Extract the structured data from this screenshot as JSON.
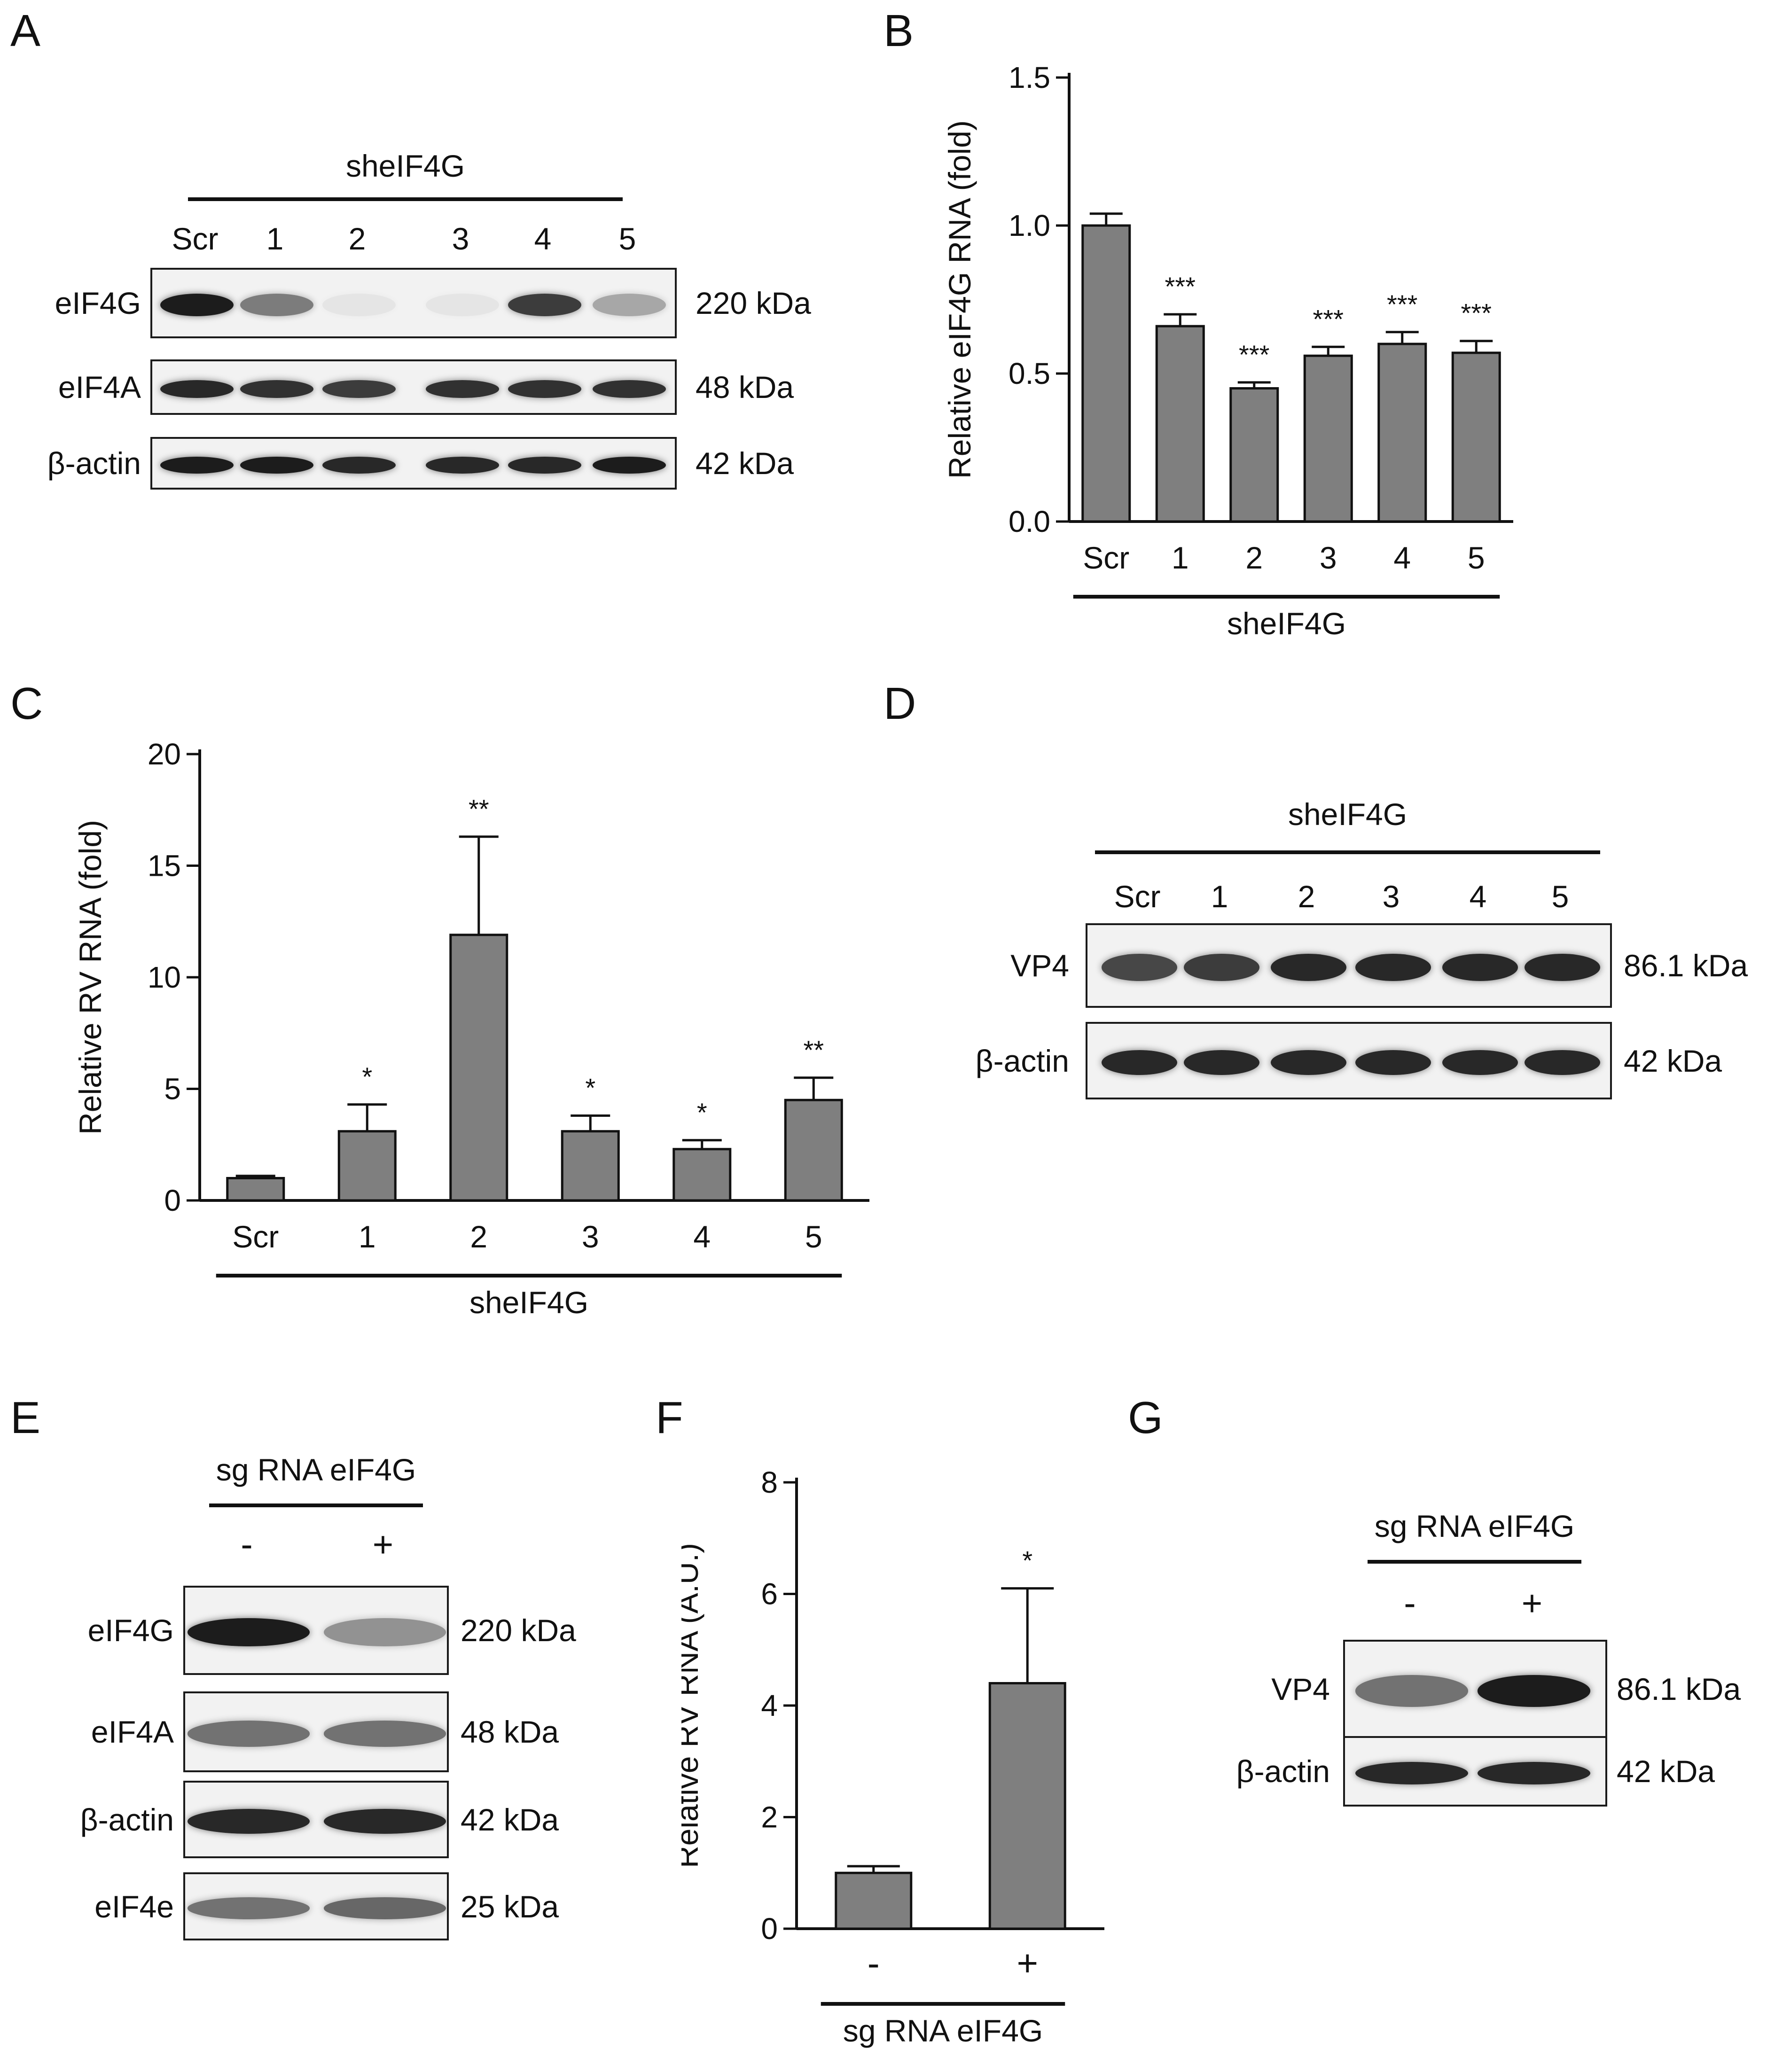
{
  "panels": {
    "A": {
      "letter": "A",
      "group_label": "sheIF4G",
      "lanes": [
        "Scr",
        "1",
        "2",
        "3",
        "4",
        "5"
      ],
      "rows": [
        {
          "name": "eIF4G",
          "size": "220 kDa",
          "intensity": [
            1.0,
            0.55,
            0.06,
            0.06,
            0.85,
            0.35
          ]
        },
        {
          "name": "eIF4A",
          "size": "48 kDa",
          "intensity": [
            0.95,
            0.9,
            0.85,
            0.9,
            0.9,
            0.9
          ]
        },
        {
          "name": "β-actin",
          "size": "42 kDa",
          "intensity": [
            1.0,
            1.0,
            0.95,
            0.95,
            0.95,
            1.0
          ]
        }
      ]
    },
    "D": {
      "letter": "D",
      "group_label": "sheIF4G",
      "lanes": [
        "Scr",
        "1",
        "2",
        "3",
        "4",
        "5"
      ],
      "rows": [
        {
          "name": "VP4",
          "size": "86.1 kDa",
          "intensity": [
            0.8,
            0.85,
            0.95,
            0.95,
            0.95,
            0.95
          ]
        },
        {
          "name": "β-actin",
          "size": "42 kDa",
          "intensity": [
            0.95,
            0.95,
            0.95,
            0.95,
            0.95,
            0.95
          ]
        }
      ]
    },
    "E": {
      "letter": "E",
      "group_label": "sg RNA eIF4G",
      "lanes": [
        "-",
        "+"
      ],
      "rows": [
        {
          "name": "eIF4G",
          "size": "220 kDa",
          "intensity": [
            1.0,
            0.45
          ]
        },
        {
          "name": "eIF4A",
          "size": "48 kDa",
          "intensity": [
            0.6,
            0.6
          ]
        },
        {
          "name": "β-actin",
          "size": "42 kDa",
          "intensity": [
            0.95,
            0.95
          ]
        },
        {
          "name": "eIF4e",
          "size": "25 kDa",
          "intensity": [
            0.6,
            0.65
          ]
        }
      ]
    },
    "G": {
      "letter": "G",
      "group_label": "sg RNA eIF4G",
      "lanes": [
        "-",
        "+"
      ],
      "rows": [
        {
          "name": "VP4",
          "size": "86.1 kDa",
          "intensity": [
            0.6,
            1.0
          ]
        },
        {
          "name": "β-actin",
          "size": "42 kDa",
          "intensity": [
            0.95,
            0.95
          ]
        }
      ]
    },
    "B": {
      "letter": "B"
    },
    "C": {
      "letter": "C"
    },
    "F": {
      "letter": "F"
    }
  },
  "colors": {
    "bar": "#7f7f7f",
    "axis": "#111111",
    "band": "#1c1c1c"
  },
  "chart_data": [
    {
      "id": "B",
      "type": "bar",
      "categories": [
        "Scr",
        "1",
        "2",
        "3",
        "4",
        "5"
      ],
      "values": [
        1.0,
        0.66,
        0.45,
        0.56,
        0.6,
        0.57
      ],
      "errors": [
        0.04,
        0.04,
        0.02,
        0.03,
        0.04,
        0.04
      ],
      "significance": [
        "",
        "***",
        "***",
        "***",
        "***",
        "***"
      ],
      "ylabel": "Relative eIF4G RNA (fold)",
      "xlabel": "sheIF4G",
      "ylim": [
        0,
        1.5
      ],
      "yticks": [
        "0.0",
        "0.5",
        "1.0",
        "1.5"
      ]
    },
    {
      "id": "C",
      "type": "bar",
      "categories": [
        "Scr",
        "1",
        "2",
        "3",
        "4",
        "5"
      ],
      "values": [
        1.0,
        3.1,
        11.9,
        3.1,
        2.3,
        4.5
      ],
      "errors": [
        0.1,
        1.2,
        4.4,
        0.7,
        0.4,
        1.0
      ],
      "significance": [
        "",
        "*",
        "**",
        "*",
        "*",
        "**"
      ],
      "ylabel": "Relative RV RNA (fold)",
      "xlabel": "sheIF4G",
      "ylim": [
        0,
        20
      ],
      "yticks": [
        "0",
        "5",
        "10",
        "15",
        "20"
      ]
    },
    {
      "id": "F",
      "type": "bar",
      "categories": [
        "-",
        "+"
      ],
      "values": [
        1.0,
        4.4
      ],
      "errors": [
        0.12,
        1.7
      ],
      "significance": [
        "",
        "*"
      ],
      "ylabel": "Relative RV RNA (A.U.)",
      "xlabel": "sg RNA eIF4G",
      "ylim": [
        0,
        8
      ],
      "yticks": [
        "0",
        "2",
        "4",
        "6",
        "8"
      ]
    }
  ]
}
